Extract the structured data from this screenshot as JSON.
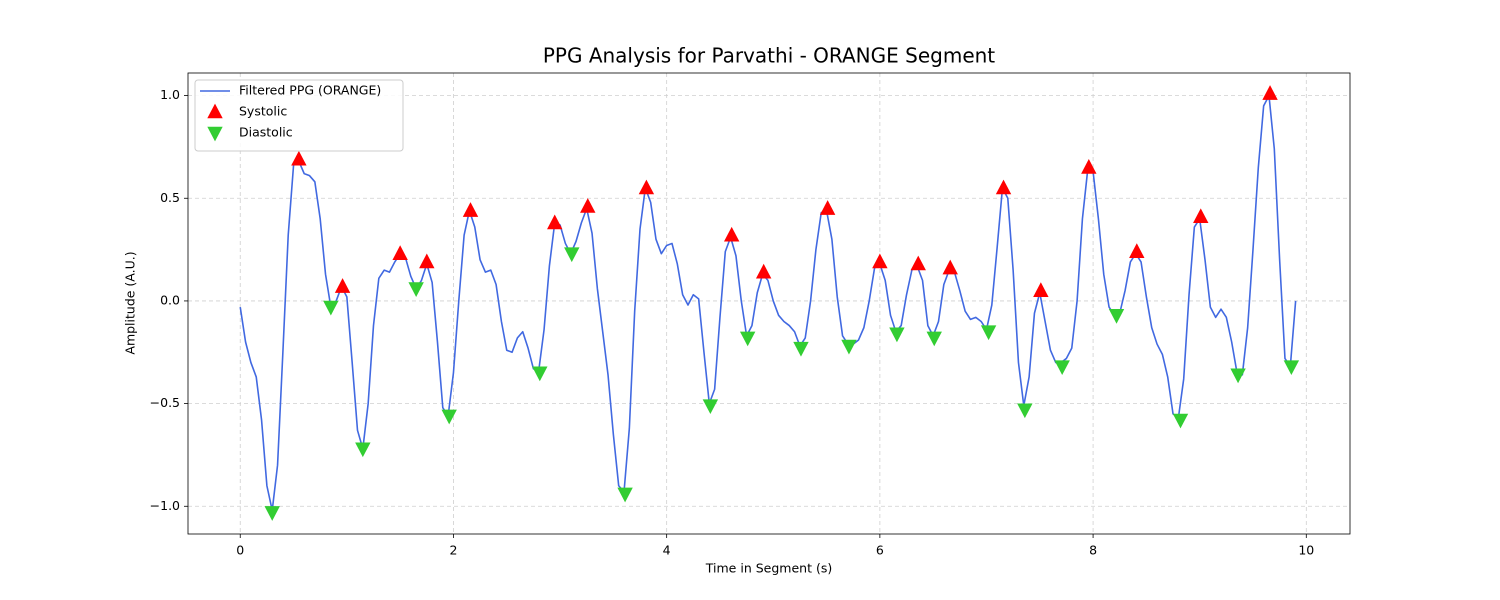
{
  "chart_data": {
    "type": "line",
    "title": "PPG Analysis for Parvathi - ORANGE Segment",
    "x_label": "Time in Segment (s)",
    "y_label": "Amplitude (A.U.)",
    "xlim": [
      -0.49,
      10.41
    ],
    "ylim": [
      -1.135,
      1.11
    ],
    "xticks": [
      0,
      2,
      4,
      6,
      8,
      10
    ],
    "yticks": [
      {
        "value": -1.0,
        "label": "−1.0"
      },
      {
        "value": -0.5,
        "label": "−0.5"
      },
      {
        "value": 0.0,
        "label": "0.0"
      },
      {
        "value": 0.5,
        "label": "0.5"
      },
      {
        "value": 1.0,
        "label": "1.0"
      }
    ],
    "grid": true,
    "legend": "upper left",
    "series": [
      {
        "name": "Filtered PPG (ORANGE)",
        "color": "#4169e1",
        "marker": "none",
        "x": [
          0,
          0.05,
          0.1,
          0.15,
          0.2,
          0.25,
          0.3,
          0.35,
          0.4,
          0.45,
          0.5,
          0.55,
          0.6,
          0.65,
          0.7,
          0.75,
          0.8,
          0.85,
          0.9,
          0.95,
          1,
          1.05,
          1.1,
          1.15,
          1.2,
          1.25,
          1.3,
          1.35,
          1.4,
          1.45,
          1.5,
          1.55,
          1.6,
          1.65,
          1.7,
          1.75,
          1.8,
          1.85,
          1.9,
          1.95,
          2,
          2.05,
          2.1,
          2.15,
          2.2,
          2.25,
          2.3,
          2.35,
          2.4,
          2.45,
          2.5,
          2.55,
          2.6,
          2.65,
          2.7,
          2.75,
          2.8,
          2.85,
          2.9,
          2.95,
          3,
          3.05,
          3.1,
          3.15,
          3.2,
          3.25,
          3.3,
          3.35,
          3.4,
          3.45,
          3.5,
          3.55,
          3.6,
          3.65,
          3.7,
          3.75,
          3.8,
          3.85,
          3.9,
          3.95,
          4,
          4.05,
          4.1,
          4.15,
          4.2,
          4.25,
          4.3,
          4.35,
          4.4,
          4.45,
          4.5,
          4.55,
          4.6,
          4.65,
          4.7,
          4.75,
          4.8,
          4.85,
          4.9,
          4.95,
          5,
          5.05,
          5.1,
          5.15,
          5.2,
          5.25,
          5.3,
          5.35,
          5.4,
          5.45,
          5.5,
          5.55,
          5.6,
          5.65,
          5.7,
          5.75,
          5.8,
          5.85,
          5.9,
          5.95,
          6,
          6.05,
          6.1,
          6.15,
          6.2,
          6.25,
          6.3,
          6.35,
          6.4,
          6.45,
          6.5,
          6.55,
          6.6,
          6.65,
          6.7,
          6.75,
          6.8,
          6.85,
          6.9,
          6.95,
          7,
          7.05,
          7.1,
          7.15,
          7.2,
          7.25,
          7.3,
          7.35,
          7.4,
          7.45,
          7.5,
          7.55,
          7.6,
          7.65,
          7.7,
          7.75,
          7.8,
          7.85,
          7.9,
          7.95,
          8,
          8.05,
          8.1,
          8.15,
          8.2,
          8.25,
          8.3,
          8.35,
          8.4,
          8.45,
          8.5,
          8.55,
          8.6,
          8.65,
          8.7,
          8.75,
          8.8,
          8.85,
          8.9,
          8.95,
          9,
          9.05,
          9.1,
          9.15,
          9.2,
          9.25,
          9.3,
          9.35,
          9.4,
          9.45,
          9.5,
          9.55,
          9.6,
          9.65,
          9.7,
          9.75,
          9.8,
          9.85,
          9.9
        ],
        "values": [
          -0.03,
          -0.2,
          -0.3,
          -0.37,
          -0.58,
          -0.9,
          -1.02,
          -0.8,
          -0.25,
          0.32,
          0.66,
          0.68,
          0.62,
          0.61,
          0.58,
          0.4,
          0.13,
          -0.03,
          0.0,
          0.07,
          0.02,
          -0.3,
          -0.63,
          -0.72,
          -0.5,
          -0.12,
          0.11,
          0.15,
          0.14,
          0.19,
          0.23,
          0.21,
          0.12,
          0.06,
          0.1,
          0.18,
          0.09,
          -0.2,
          -0.52,
          -0.56,
          -0.35,
          0.0,
          0.32,
          0.44,
          0.36,
          0.2,
          0.14,
          0.15,
          0.08,
          -0.1,
          -0.24,
          -0.25,
          -0.18,
          -0.15,
          -0.23,
          -0.33,
          -0.34,
          -0.14,
          0.17,
          0.38,
          0.37,
          0.28,
          0.23,
          0.29,
          0.38,
          0.45,
          0.33,
          0.06,
          -0.15,
          -0.36,
          -0.65,
          -0.9,
          -0.93,
          -0.62,
          -0.05,
          0.35,
          0.55,
          0.48,
          0.3,
          0.23,
          0.27,
          0.28,
          0.18,
          0.03,
          -0.02,
          0.03,
          0.01,
          -0.25,
          -0.5,
          -0.43,
          -0.08,
          0.24,
          0.31,
          0.22,
          0.0,
          -0.17,
          -0.12,
          0.04,
          0.13,
          0.1,
          0.0,
          -0.07,
          -0.1,
          -0.12,
          -0.15,
          -0.22,
          -0.18,
          0.0,
          0.25,
          0.43,
          0.44,
          0.3,
          0.02,
          -0.17,
          -0.21,
          -0.21,
          -0.19,
          -0.13,
          0.0,
          0.16,
          0.18,
          0.1,
          -0.07,
          -0.15,
          -0.12,
          0.03,
          0.15,
          0.17,
          0.1,
          -0.12,
          -0.17,
          -0.1,
          0.08,
          0.15,
          0.14,
          0.05,
          -0.05,
          -0.09,
          -0.08,
          -0.1,
          -0.14,
          -0.02,
          0.26,
          0.55,
          0.5,
          0.15,
          -0.3,
          -0.51,
          -0.37,
          -0.06,
          0.04,
          -0.1,
          -0.24,
          -0.3,
          -0.3,
          -0.28,
          -0.23,
          0.0,
          0.4,
          0.64,
          0.63,
          0.4,
          0.13,
          -0.03,
          -0.07,
          -0.06,
          0.05,
          0.19,
          0.23,
          0.19,
          0.02,
          -0.13,
          -0.21,
          -0.26,
          -0.37,
          -0.55,
          -0.57,
          -0.38,
          0.03,
          0.36,
          0.4,
          0.2,
          -0.03,
          -0.08,
          -0.04,
          -0.08,
          -0.2,
          -0.35,
          -0.36,
          -0.13,
          0.25,
          0.65,
          0.95,
          1.0,
          0.74,
          0.2,
          -0.28,
          -0.32,
          0.0
        ]
      },
      {
        "name": "Systolic",
        "color": "#ff0000",
        "marker": "triangle-up",
        "x": [
          0.55,
          0.96,
          1.5,
          1.75,
          2.16,
          2.95,
          3.26,
          3.81,
          4.61,
          4.91,
          5.51,
          6.0,
          6.36,
          6.66,
          7.16,
          7.51,
          7.96,
          8.41,
          9.01,
          9.66
        ],
        "values": [
          0.69,
          0.07,
          0.23,
          0.19,
          0.44,
          0.38,
          0.46,
          0.55,
          0.32,
          0.14,
          0.45,
          0.19,
          0.18,
          0.16,
          0.55,
          0.05,
          0.65,
          0.24,
          0.41,
          1.01
        ]
      },
      {
        "name": "Diastolic",
        "color": "#32cd32",
        "marker": "triangle-down",
        "x": [
          0.3,
          0.85,
          1.15,
          1.65,
          1.96,
          2.81,
          3.11,
          3.61,
          4.41,
          4.76,
          5.26,
          5.71,
          6.16,
          6.51,
          7.02,
          7.36,
          7.71,
          8.22,
          8.82,
          9.36,
          9.86
        ],
        "values": [
          -1.03,
          -0.03,
          -0.72,
          0.06,
          -0.56,
          -0.35,
          0.23,
          -0.94,
          -0.51,
          -0.18,
          -0.23,
          -0.22,
          -0.16,
          -0.18,
          -0.15,
          -0.53,
          -0.32,
          -0.07,
          -0.58,
          -0.36,
          -0.32
        ]
      }
    ]
  }
}
